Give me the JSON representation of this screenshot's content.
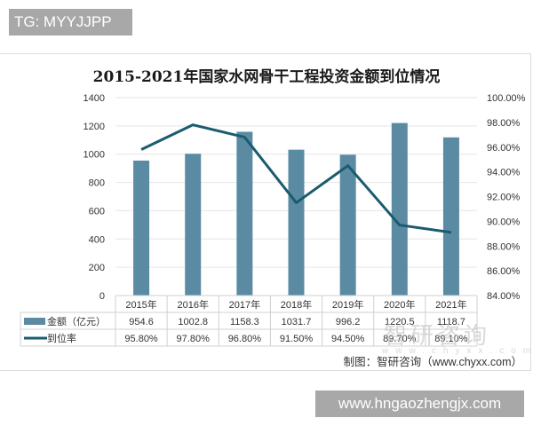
{
  "tag_label": "TG: MYYJJPP",
  "watermark_bottom": "www.hngaozhengjx.com",
  "watermark_logo": "智研咨询",
  "watermark_logo_url": "www.chyxx.com",
  "source": "制图：智研咨询（www.chyxx.com）",
  "colors": {
    "bar": "#5b8ba3",
    "line": "#1a5c6e",
    "grid": "#e6e6e6"
  },
  "chart_data": {
    "type": "bar+line",
    "title": "2015-2021年国家水网骨干工程投资金额到位情况",
    "categories": [
      "2015年",
      "2016年",
      "2017年",
      "2018年",
      "2019年",
      "2020年",
      "2021年"
    ],
    "series": [
      {
        "name": "金额（亿元）",
        "type": "bar",
        "axis": "left",
        "values": [
          954.6,
          1002.8,
          1158.3,
          1031.7,
          996.2,
          1220.5,
          1118.7
        ],
        "labels": [
          "954.6",
          "1002.8",
          "1158.3",
          "1031.7",
          "996.2",
          "1220.5",
          "1118.7"
        ]
      },
      {
        "name": "到位率",
        "type": "line",
        "axis": "right",
        "values": [
          95.8,
          97.8,
          96.8,
          91.5,
          94.5,
          89.7,
          89.1
        ],
        "labels": [
          "95.80%",
          "97.80%",
          "96.80%",
          "91.50%",
          "94.50%",
          "89.70%",
          "89.10%"
        ]
      }
    ],
    "ylim_left": [
      0,
      1400
    ],
    "yticks_left": [
      "0",
      "200",
      "400",
      "600",
      "800",
      "1000",
      "1200",
      "1400"
    ],
    "ylim_right": [
      84,
      100
    ],
    "yticks_right": [
      "84.00%",
      "86.00%",
      "88.00%",
      "90.00%",
      "92.00%",
      "94.00%",
      "96.00%",
      "98.00%",
      "100.00%"
    ],
    "grid": true,
    "legend_position": "data-table"
  }
}
